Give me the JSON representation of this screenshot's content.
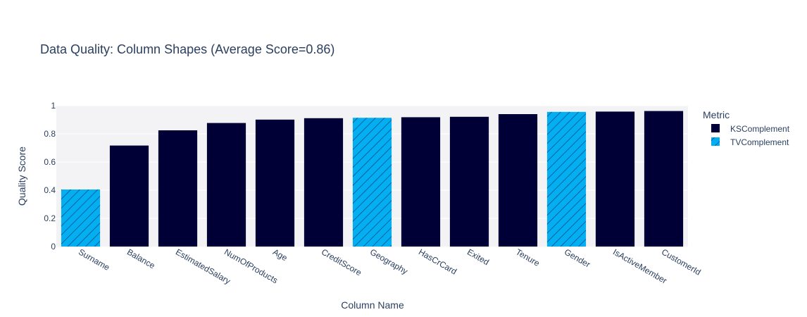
{
  "chart_data": {
    "type": "bar",
    "title": "Data Quality: Column Shapes (Average Score=0.86)",
    "xlabel": "Column Name",
    "ylabel": "Quality Score",
    "ylim": [
      0,
      1
    ],
    "yticks": [
      0,
      0.2,
      0.4,
      0.6,
      0.8,
      1
    ],
    "ytick_labels": [
      "0",
      "0.2",
      "0.4",
      "0.6",
      "0.8",
      "1"
    ],
    "legend_title": "Metric",
    "legend_position": "right",
    "grid": true,
    "categories": [
      "Surname",
      "Balance",
      "EstimatedSalary",
      "NumOfProducts",
      "Age",
      "CreditScore",
      "Geography",
      "HasCrCard",
      "Exited",
      "Tenure",
      "Gender",
      "IsActiveMember",
      "CustomerId"
    ],
    "values": [
      0.405,
      0.717,
      0.825,
      0.877,
      0.901,
      0.911,
      0.914,
      0.918,
      0.921,
      0.94,
      0.956,
      0.958,
      0.962
    ],
    "metric": [
      "TVComplement",
      "KSComplement",
      "KSComplement",
      "KSComplement",
      "KSComplement",
      "KSComplement",
      "TVComplement",
      "KSComplement",
      "KSComplement",
      "KSComplement",
      "TVComplement",
      "KSComplement",
      "KSComplement"
    ],
    "series": [
      {
        "name": "KSComplement",
        "color": "#000036",
        "pattern": "solid"
      },
      {
        "name": "TVComplement",
        "color": "#03AFF1",
        "pattern": "diagonal-hatch"
      }
    ]
  },
  "colors": {
    "plot_bg": "#F3F3F6",
    "text": "#2a3f5f",
    "grid": "#ffffff",
    "hatch": "#000036"
  }
}
